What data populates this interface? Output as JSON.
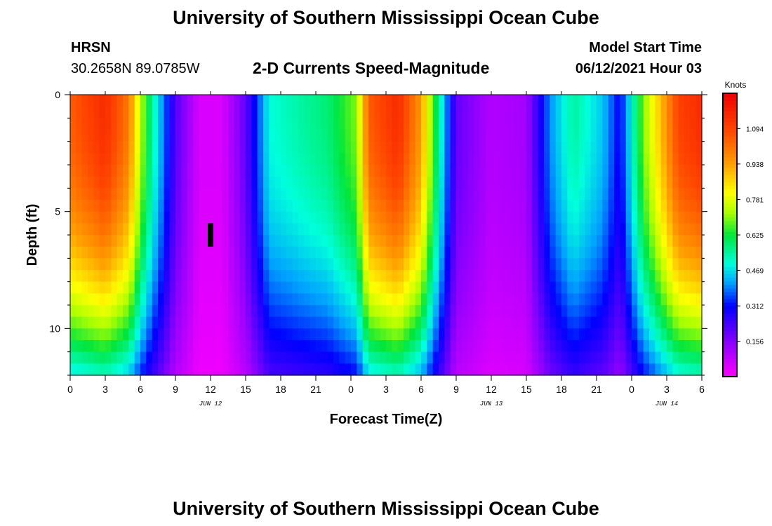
{
  "header": {
    "title": "University of Southern Mississippi Ocean Cube",
    "station": "HRSN",
    "coords": "30.2658N  89.0785W",
    "subtitle": "2-D Currents Speed-Magnitude",
    "model_label": "Model Start Time",
    "model_time": "06/12/2021 Hour 03"
  },
  "footer": {
    "title": "University of Southern Mississippi Ocean Cube"
  },
  "chart_data": {
    "type": "heatmap",
    "title": "2-D Currents Speed-Magnitude",
    "xlabel": "Forecast Time(Z)",
    "ylabel": "Depth (ft)",
    "x_hours_range": [
      0,
      54
    ],
    "x_tick_hours": [
      0,
      3,
      6,
      9,
      12,
      15,
      18,
      21,
      24,
      27,
      30,
      33,
      36,
      39,
      42,
      45,
      48,
      51,
      54
    ],
    "x_tick_labels": [
      "0",
      "3",
      "6",
      "9",
      "12",
      "15",
      "18",
      "21",
      "0",
      "3",
      "6",
      "9",
      "12",
      "15",
      "18",
      "21",
      "0",
      "3",
      "6"
    ],
    "date_labels": [
      {
        "hour": 12,
        "text": "JUN 12"
      },
      {
        "hour": 36,
        "text": "JUN 13"
      },
      {
        "hour": 51,
        "text": "JUN 14"
      }
    ],
    "y_depth_range": [
      0,
      12
    ],
    "y_ticks": [
      0,
      5,
      10
    ],
    "y_tick_labels": [
      "0",
      "5",
      "10"
    ],
    "colorbar": {
      "unit": "Knots",
      "min": 0.0,
      "max": 1.25,
      "ticks": [
        0.156,
        0.312,
        0.469,
        0.625,
        0.781,
        0.938,
        1.094
      ],
      "tick_labels": [
        "0.156",
        "0.312",
        "0.469",
        "0.625",
        "0.781",
        "0.938",
        "1.094"
      ]
    },
    "marker": {
      "hour": 12,
      "depth_from": 5.5,
      "depth_to": 6.5
    },
    "surface_speed_by_hour": [
      {
        "hour": 0,
        "value": 1.05
      },
      {
        "hour": 3,
        "value": 1.15
      },
      {
        "hour": 5,
        "value": 1.0
      },
      {
        "hour": 6,
        "value": 0.75
      },
      {
        "hour": 7,
        "value": 0.55
      },
      {
        "hour": 9,
        "value": 0.22
      },
      {
        "hour": 11,
        "value": 0.05
      },
      {
        "hour": 13,
        "value": 0.05
      },
      {
        "hour": 15,
        "value": 0.2
      },
      {
        "hour": 16,
        "value": 0.35
      },
      {
        "hour": 17,
        "value": 0.5
      },
      {
        "hour": 20,
        "value": 0.55
      },
      {
        "hour": 22,
        "value": 0.58
      },
      {
        "hour": 24.5,
        "value": 0.7
      },
      {
        "hour": 25.5,
        "value": 1.05
      },
      {
        "hour": 28,
        "value": 1.15
      },
      {
        "hour": 30,
        "value": 0.95
      },
      {
        "hour": 31.5,
        "value": 0.55
      },
      {
        "hour": 33,
        "value": 0.2
      },
      {
        "hour": 36,
        "value": 0.1
      },
      {
        "hour": 39,
        "value": 0.12
      },
      {
        "hour": 41,
        "value": 0.4
      },
      {
        "hour": 43,
        "value": 0.55
      },
      {
        "hour": 45.5,
        "value": 0.45
      },
      {
        "hour": 47,
        "value": 0.3
      },
      {
        "hour": 49,
        "value": 0.7
      },
      {
        "hour": 52,
        "value": 1.1
      },
      {
        "hour": 54,
        "value": 1.15
      }
    ]
  }
}
